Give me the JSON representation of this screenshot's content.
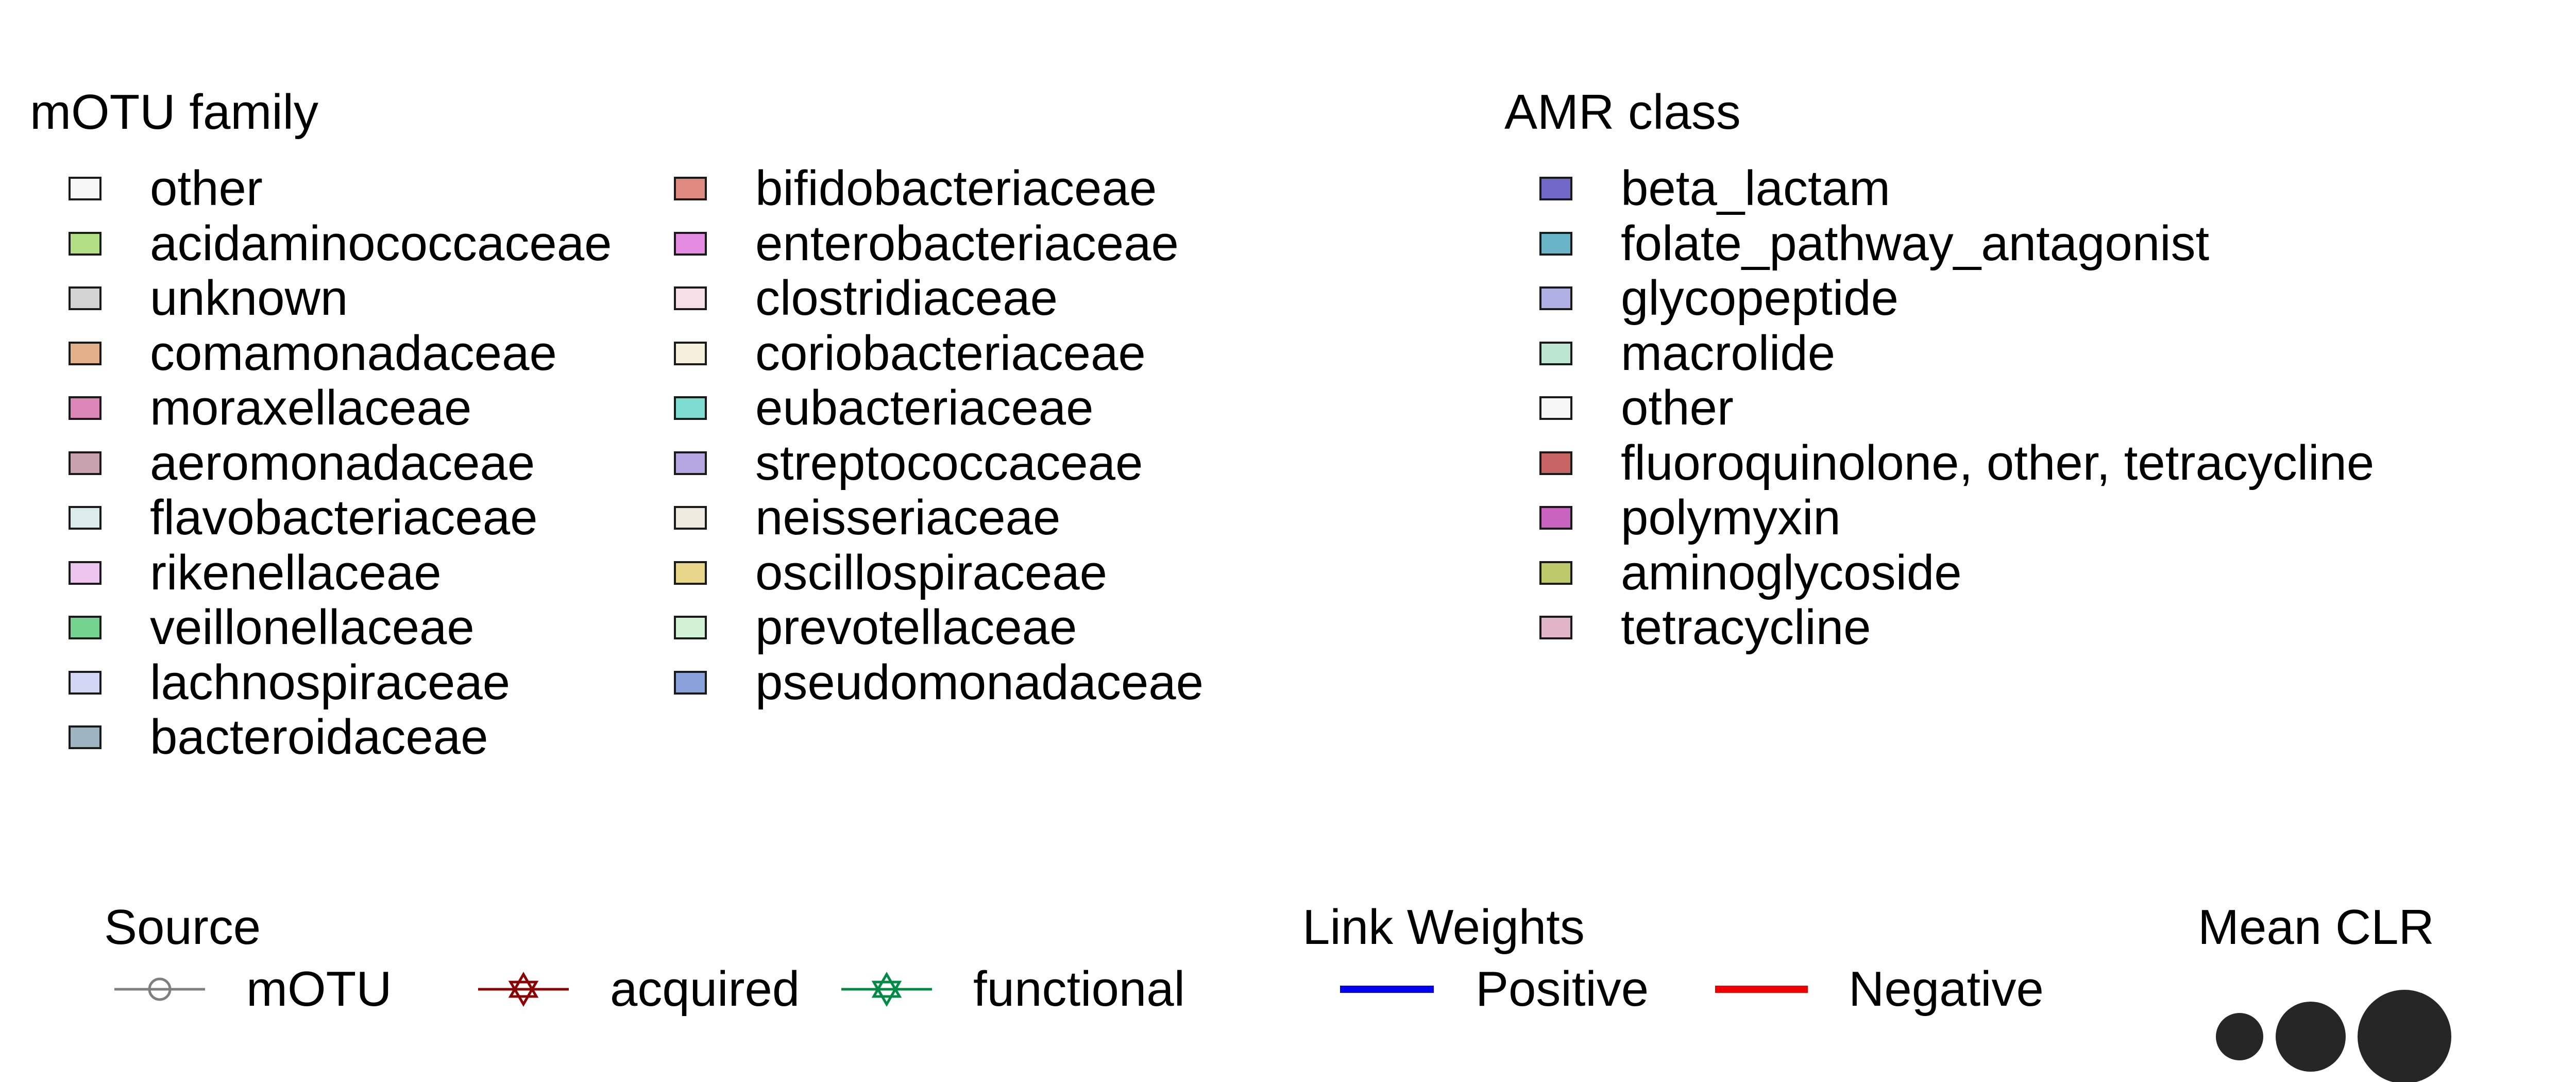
{
  "chart_data": [
    {
      "type": "legend",
      "title": "mOTU family",
      "columns": [
        [
          {
            "label": "other",
            "color": "#f7f7f7"
          },
          {
            "label": "acidaminococcaceae",
            "color": "#b3df85"
          },
          {
            "label": "unknown",
            "color": "#d4d4d4"
          },
          {
            "label": "comamonadaceae",
            "color": "#e2b08a"
          },
          {
            "label": "moraxellaceae",
            "color": "#dd86b8"
          },
          {
            "label": "aeromonadaceae",
            "color": "#c9a2b0"
          },
          {
            "label": "flavobacteriaceae",
            "color": "#dcecec"
          },
          {
            "label": "rikenellaceae",
            "color": "#ecc6ee"
          },
          {
            "label": "veillonellaceae",
            "color": "#74d48f"
          },
          {
            "label": "lachnospiraceae",
            "color": "#d3d6f4"
          },
          {
            "label": "bacteroidaceae",
            "color": "#9db3c0"
          }
        ],
        [
          {
            "label": "bifidobacteriaceae",
            "color": "#de8a80"
          },
          {
            "label": "enterobacteriaceae",
            "color": "#e38ce2"
          },
          {
            "label": "clostridiaceae",
            "color": "#f4e0e6"
          },
          {
            "label": "coriobacteriaceae",
            "color": "#f4f0dc"
          },
          {
            "label": "eubacteriaceae",
            "color": "#7fdcd0"
          },
          {
            "label": "streptococcaceae",
            "color": "#b6a6e2"
          },
          {
            "label": "neisseriaceae",
            "color": "#eeeae0"
          },
          {
            "label": "oscillospiraceae",
            "color": "#e8d68a"
          },
          {
            "label": "prevotellaceae",
            "color": "#d2f2d6"
          },
          {
            "label": "pseudomonadaceae",
            "color": "#8aa2dc"
          }
        ]
      ]
    },
    {
      "type": "legend",
      "title": "AMR class",
      "items": [
        {
          "label": "beta_lactam",
          "color": "#7268c8"
        },
        {
          "label": "folate_pathway_antagonist",
          "color": "#6ab4c8"
        },
        {
          "label": "glycopeptide",
          "color": "#b0b0e4"
        },
        {
          "label": "macrolide",
          "color": "#bce6d2"
        },
        {
          "label": "other",
          "color": "#f7f7f7"
        },
        {
          "label": "fluoroquinolone, other, tetracycline",
          "color": "#c86464"
        },
        {
          "label": "polymyxin",
          "color": "#c864c0"
        },
        {
          "label": "aminoglycoside",
          "color": "#bcca6c"
        },
        {
          "label": "tetracycline",
          "color": "#e2b4c8"
        }
      ]
    },
    {
      "type": "legend",
      "title": "Source",
      "items": [
        {
          "label": "mOTU",
          "color": "#7f7f7f",
          "icon": "circle-line-icon"
        },
        {
          "label": "acquired",
          "color": "#8b0000",
          "icon": "star-of-david-line-icon"
        },
        {
          "label": "functional",
          "color": "#008b45",
          "icon": "star-of-david-line-icon"
        }
      ]
    },
    {
      "type": "legend",
      "title": "Link Weights",
      "items": [
        {
          "label": "Positive",
          "color": "#0000ee"
        },
        {
          "label": "Negative",
          "color": "#ee0000"
        }
      ]
    },
    {
      "type": "legend",
      "title": "Mean CLR",
      "sizes": [
        1,
        2,
        3
      ],
      "color": "#262626"
    }
  ]
}
